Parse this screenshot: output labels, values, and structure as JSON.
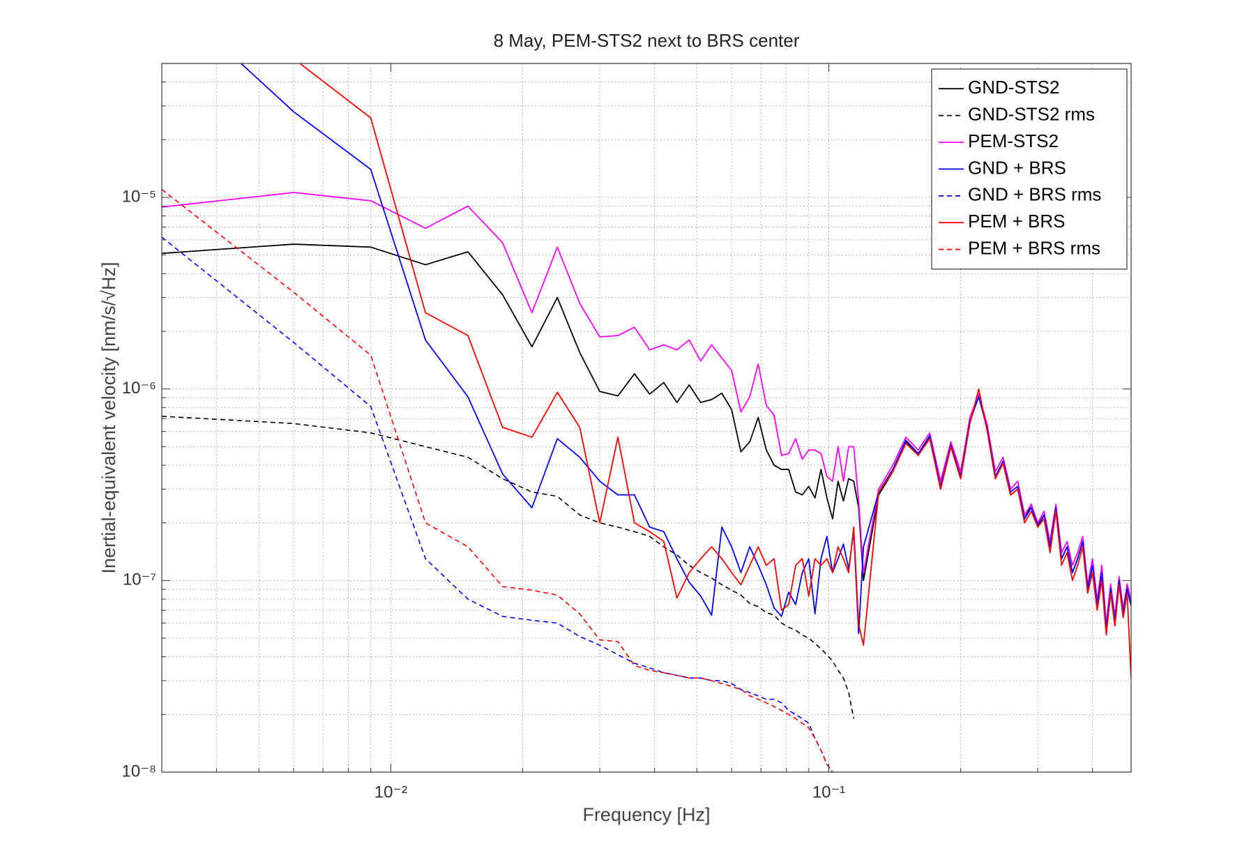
{
  "chart_data": {
    "type": "line",
    "title": "8 May, PEM-STS2 next to BRS center",
    "x_label": "Frequency [Hz]",
    "y_label": "Inertial-equivalent velocity [nm/s/√Hz]",
    "xlog": true,
    "ylog": true,
    "grid": true,
    "legend": "northeast",
    "xlim": [
      0.003,
      0.49
    ],
    "ylim": [
      1e-08,
      5e-05
    ],
    "xticks": [
      {
        "value": 0.01,
        "label": "10⁻²"
      },
      {
        "value": 0.1,
        "label": "10⁻¹"
      }
    ],
    "yticks": [
      {
        "value": 1e-08,
        "label": "10⁻⁸"
      },
      {
        "value": 1e-07,
        "label": "10⁻⁷"
      },
      {
        "value": 1e-06,
        "label": "10⁻⁶"
      },
      {
        "value": 1e-05,
        "label": "10⁻⁵"
      }
    ],
    "xminorticks": [
      0.004,
      0.005,
      0.006,
      0.007,
      0.008,
      0.009,
      0.02,
      0.03,
      0.04,
      0.05,
      0.06,
      0.07,
      0.08,
      0.09,
      0.2,
      0.3,
      0.4
    ],
    "yminorticks": [
      2e-08,
      3e-08,
      4e-08,
      5e-08,
      6e-08,
      7e-08,
      8e-08,
      9e-08,
      2e-07,
      3e-07,
      4e-07,
      5e-07,
      6e-07,
      7e-07,
      8e-07,
      9e-07,
      2e-06,
      3e-06,
      4e-06,
      5e-06,
      6e-06,
      7e-06,
      8e-06,
      9e-06,
      2e-05,
      3e-05,
      4e-05
    ],
    "x": [
      0.003,
      0.006,
      0.009,
      0.012,
      0.015,
      0.018,
      0.021,
      0.024,
      0.027,
      0.03,
      0.033,
      0.036,
      0.039,
      0.042,
      0.045,
      0.048,
      0.051,
      0.054,
      0.057,
      0.06,
      0.063,
      0.066,
      0.069,
      0.072,
      0.075,
      0.078,
      0.081,
      0.084,
      0.087,
      0.09,
      0.093,
      0.096,
      0.099,
      0.102,
      0.105,
      0.108,
      0.111,
      0.114,
      0.117,
      0.12,
      0.13,
      0.14,
      0.15,
      0.16,
      0.17,
      0.18,
      0.19,
      0.2,
      0.21,
      0.22,
      0.23,
      0.24,
      0.25,
      0.26,
      0.27,
      0.28,
      0.29,
      0.3,
      0.31,
      0.32,
      0.33,
      0.34,
      0.35,
      0.36,
      0.37,
      0.38,
      0.39,
      0.4,
      0.41,
      0.42,
      0.43,
      0.44,
      0.45,
      0.46,
      0.47,
      0.48,
      0.49
    ],
    "series": [
      {
        "name": "GND-STS2",
        "color": "#000000",
        "dash": false,
        "values": [
          5.1e-06,
          5.7e-06,
          5.5e-06,
          4.45e-06,
          5.2e-06,
          3.1e-06,
          1.66e-06,
          3e-06,
          1.55e-06,
          9.7e-07,
          9.2e-07,
          1.2e-06,
          9.4e-07,
          1.08e-06,
          8.5e-07,
          1.05e-06,
          8.5e-07,
          8.8e-07,
          9.5e-07,
          7.8e-07,
          4.7e-07,
          5.3e-07,
          7.1e-07,
          4.8e-07,
          4e-07,
          3.8e-07,
          3.8e-07,
          2.9e-07,
          2.8e-07,
          3.1e-07,
          2.7e-07,
          3.8e-07,
          2.7e-07,
          2.1e-07,
          3.3e-07,
          2.6e-07,
          3.4e-07,
          3.3e-07,
          2.4e-07,
          1e-07,
          2.8e-07,
          3.7e-07,
          5.3e-07,
          4.5e-07,
          5.6e-07,
          3e-07,
          5e-07,
          3.4e-07,
          6.7e-07,
          9.3e-07,
          6.1e-07,
          3.4e-07,
          4.1e-07,
          2.8e-07,
          3e-07,
          2.1e-07,
          2.5e-07,
          1.9e-07,
          2.2e-07,
          1.5e-07,
          2.3e-07,
          1.3e-07,
          1.5e-07,
          1.1e-07,
          1.3e-07,
          1.6e-07,
          9e-08,
          1.2e-07,
          7.4e-08,
          1.1e-07,
          5.5e-08,
          9e-08,
          6.1e-08,
          1e-07,
          6.7e-08,
          9e-08,
          7.4e-08
        ]
      },
      {
        "name": "GND-STS2 rms",
        "color": "#000000",
        "dash": true,
        "values": [
          7.2e-07,
          6.6e-07,
          5.9e-07,
          5e-07,
          4.4e-07,
          3.4e-07,
          2.9e-07,
          2.75e-07,
          2.2e-07,
          2e-07,
          1.9e-07,
          1.8e-07,
          1.7e-07,
          1.5e-07,
          1.36e-07,
          1.2e-07,
          1.1e-07,
          1.03e-07,
          9.5e-08,
          8.9e-08,
          8.4e-08,
          7.6e-08,
          7.3e-08,
          6.8e-08,
          6.6e-08,
          6e-08,
          5.7e-08,
          5.5e-08,
          5.2e-08,
          5e-08,
          4.7e-08,
          4.4e-08,
          4.1e-08,
          3.8e-08,
          3.4e-08,
          3.1e-08,
          2.6e-08,
          1.9e-08,
          null,
          null,
          null,
          null,
          null,
          null,
          null,
          null,
          null,
          null,
          null,
          null,
          null,
          null,
          null,
          null,
          null,
          null,
          null,
          null,
          null,
          null,
          null,
          null,
          null,
          null,
          null,
          null,
          null,
          null,
          null,
          null,
          null,
          null,
          null,
          null,
          null,
          null,
          null
        ]
      },
      {
        "name": "PEM-STS2",
        "color": "#ff00ff",
        "dash": false,
        "values": [
          8.9e-06,
          1.06e-05,
          9.6e-06,
          6.9e-06,
          9e-06,
          5.8e-06,
          2.5e-06,
          5.5e-06,
          2.8e-06,
          1.87e-06,
          1.9e-06,
          2.1e-06,
          1.6e-06,
          1.7e-06,
          1.6e-06,
          1.8e-06,
          1.4e-06,
          1.7e-06,
          1.45e-06,
          1.25e-06,
          7.6e-07,
          9.1e-07,
          1.35e-06,
          8.2e-07,
          7.3e-07,
          4.5e-07,
          4.6e-07,
          5.5e-07,
          4.3e-07,
          4.8e-07,
          4.8e-07,
          4.6e-07,
          3.5e-07,
          3.3e-07,
          5e-07,
          3.3e-07,
          5e-07,
          5e-07,
          2.6e-07,
          1.1e-07,
          3e-07,
          4e-07,
          5.6e-07,
          4.8e-07,
          5.9e-07,
          3.3e-07,
          5.3e-07,
          3.7e-07,
          7.1e-07,
          9.4e-07,
          6.5e-07,
          3.7e-07,
          4.4e-07,
          3e-07,
          3.3e-07,
          2.2e-07,
          2.5e-07,
          2e-07,
          2.3e-07,
          1.6e-07,
          2.5e-07,
          1.4e-07,
          1.6e-07,
          1.2e-07,
          1.4e-07,
          1.7e-07,
          9.5e-08,
          1.3e-07,
          7.9e-08,
          1.2e-07,
          5.9e-08,
          9.6e-08,
          6.5e-08,
          1.05e-07,
          7.1e-08,
          9.6e-08,
          7.9e-08
        ]
      },
      {
        "name": "GND + BRS",
        "color": "#0000ff",
        "dash": false,
        "values": [
          0.00012,
          2.8e-05,
          1.4e-05,
          1.8e-06,
          9.1e-07,
          3.6e-07,
          2.4e-07,
          5.5e-07,
          4.4e-07,
          3.3e-07,
          2.8e-07,
          2.8e-07,
          1.9e-07,
          1.8e-07,
          1.3e-07,
          9.8e-08,
          8.3e-08,
          6.6e-08,
          1.9e-07,
          1.5e-07,
          1.1e-07,
          1.5e-07,
          1.2e-07,
          9.5e-08,
          7.2e-08,
          6.5e-08,
          8.7e-08,
          7.5e-08,
          1.1e-07,
          1.3e-07,
          6.7e-08,
          1.3e-07,
          1.7e-07,
          1.1e-07,
          1.3e-07,
          1.55e-07,
          1.15e-07,
          1.8e-07,
          5.3e-08,
          1.5e-07,
          2.9e-07,
          3.8e-07,
          5.4e-07,
          4.6e-07,
          5.7e-07,
          3.1e-07,
          5.1e-07,
          3.5e-07,
          6.8e-07,
          9.1e-07,
          6.2e-07,
          3.5e-07,
          4.2e-07,
          2.9e-07,
          3.1e-07,
          2.1e-07,
          2.4e-07,
          1.95e-07,
          2.2e-07,
          1.5e-07,
          2.4e-07,
          1.3e-07,
          1.5e-07,
          1.1e-07,
          1.3e-07,
          1.6e-07,
          9.1e-08,
          1.2e-07,
          7.5e-08,
          1.1e-07,
          5.6e-08,
          9.1e-08,
          6.2e-08,
          1e-07,
          6.8e-08,
          9.1e-08,
          7.5e-08
        ]
      },
      {
        "name": "GND + BRS rms",
        "color": "#0000ff",
        "dash": true,
        "values": [
          6.2e-06,
          1.75e-06,
          8.1e-07,
          1.3e-07,
          8e-08,
          6.5e-08,
          6.2e-08,
          6e-08,
          5.1e-08,
          4.6e-08,
          4.1e-08,
          3.7e-08,
          3.5e-08,
          3.3e-08,
          3.2e-08,
          3.1e-08,
          3.1e-08,
          3e-08,
          3e-08,
          2.9e-08,
          2.7e-08,
          2.6e-08,
          2.5e-08,
          2.4e-08,
          2.4e-08,
          2.3e-08,
          2.1e-08,
          2e-08,
          1.9e-08,
          1.8e-08,
          1.5e-08,
          1.3e-08,
          1.1e-08,
          1e-08,
          8e-09,
          null,
          null,
          null,
          null,
          null,
          null,
          null,
          null,
          null,
          null,
          null,
          null,
          null,
          null,
          null,
          null,
          null,
          null,
          null,
          null,
          null,
          null,
          null,
          null,
          null,
          null,
          null,
          null,
          null,
          null,
          null,
          null,
          null,
          null,
          null,
          null,
          null,
          null,
          null,
          null,
          null,
          null
        ]
      },
      {
        "name": "PEM + BRS",
        "color": "#ff0000",
        "dash": false,
        "values": [
          0.00016,
          5.3e-05,
          2.6e-05,
          2.5e-06,
          1.9e-06,
          6.3e-07,
          5.6e-07,
          9.6e-07,
          6.3e-07,
          2e-07,
          5.6e-07,
          2e-07,
          1.8e-07,
          1.6e-07,
          8.1e-08,
          1.1e-07,
          1.3e-07,
          1.5e-07,
          1.3e-07,
          1.1e-07,
          9.5e-08,
          1.2e-07,
          1.5e-07,
          1.2e-07,
          1.3e-07,
          7e-08,
          7.5e-08,
          1.2e-07,
          1.3e-07,
          8.3e-08,
          1.3e-07,
          1.2e-07,
          1.3e-07,
          1.1e-07,
          1.5e-07,
          1.3e-07,
          1.1e-07,
          1.9e-07,
          5.9e-08,
          4.6e-08,
          2.9e-07,
          3.7e-07,
          5.2e-07,
          4.5e-07,
          5.5e-07,
          3e-07,
          5e-07,
          3.4e-07,
          6.6e-07,
          1e-06,
          6e-07,
          3.4e-07,
          4.1e-07,
          2.8e-07,
          3e-07,
          2e-07,
          2.3e-07,
          1.9e-07,
          2.1e-07,
          1.4e-07,
          2.3e-07,
          1.2e-07,
          1.4e-07,
          1e-07,
          1.2e-07,
          1.5e-07,
          8.6e-08,
          1.1e-07,
          7e-08,
          1e-07,
          5.2e-08,
          8.6e-08,
          5.8e-08,
          9.5e-08,
          6.4e-08,
          8.6e-08,
          3.1e-08
        ]
      },
      {
        "name": "PEM + BRS rms",
        "color": "#ff0000",
        "dash": true,
        "values": [
          1.1e-05,
          3.2e-06,
          1.5e-06,
          2e-07,
          1.5e-07,
          9.3e-08,
          8.9e-08,
          8.4e-08,
          6.7e-08,
          4.9e-08,
          4.8e-08,
          3.6e-08,
          3.4e-08,
          3.3e-08,
          3.2e-08,
          3.1e-08,
          3.1e-08,
          3e-08,
          2.9e-08,
          2.8e-08,
          2.7e-08,
          2.5e-08,
          2.4e-08,
          2.3e-08,
          2.2e-08,
          2.1e-08,
          2e-08,
          1.9e-08,
          1.8e-08,
          1.7e-08,
          1.5e-08,
          1.3e-08,
          1.1e-08,
          1e-08,
          8e-09,
          null,
          null,
          null,
          null,
          null,
          null,
          null,
          null,
          null,
          null,
          null,
          null,
          null,
          null,
          null,
          null,
          null,
          null,
          null,
          null,
          null,
          null,
          null,
          null,
          null,
          null,
          null,
          null,
          null,
          null,
          null,
          null,
          null,
          null,
          null,
          null,
          null,
          null,
          null,
          null,
          null,
          null
        ]
      }
    ]
  }
}
